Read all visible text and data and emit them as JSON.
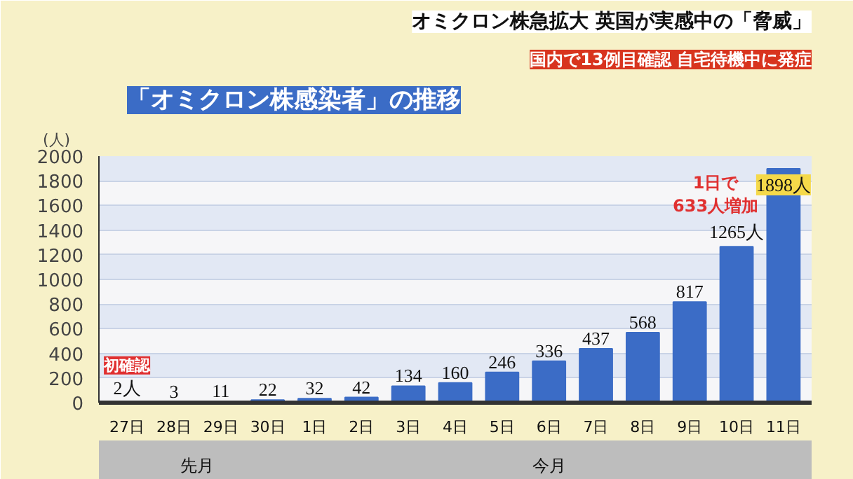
{
  "chart_data": {
    "type": "bar",
    "title": "「オミクロン株感染者」の推移",
    "ylabel": "(人)",
    "categories": [
      "27日",
      "28日",
      "29日",
      "30日",
      "1日",
      "2日",
      "3日",
      "4日",
      "5日",
      "6日",
      "7日",
      "8日",
      "9日",
      "10日",
      "11日"
    ],
    "values": [
      2,
      3,
      11,
      22,
      32,
      42,
      134,
      160,
      246,
      336,
      437,
      568,
      817,
      1265,
      1898
    ],
    "value_labels": [
      "2人",
      "3",
      "11",
      "22",
      "32",
      "42",
      "134",
      "160",
      "246",
      "336",
      "437",
      "568",
      "817",
      "1265人",
      "1898人"
    ],
    "color": "#3b6cc6",
    "ylim": [
      0,
      2000
    ],
    "yticks": [
      0,
      200,
      400,
      600,
      800,
      1000,
      1200,
      1400,
      1600,
      1800,
      2000
    ],
    "grid": "y",
    "annotations": [
      "オミクロン株急拡大 英国が実感中の「脅威」",
      "国内で13例目確認 自宅待機中に発症",
      {
        "text": "初確認",
        "x": "27日",
        "y": 2
      },
      {
        "text": "1日で\n633人増加",
        "x": "10日",
        "y": 1265
      },
      "先月",
      "今月"
    ]
  }
}
